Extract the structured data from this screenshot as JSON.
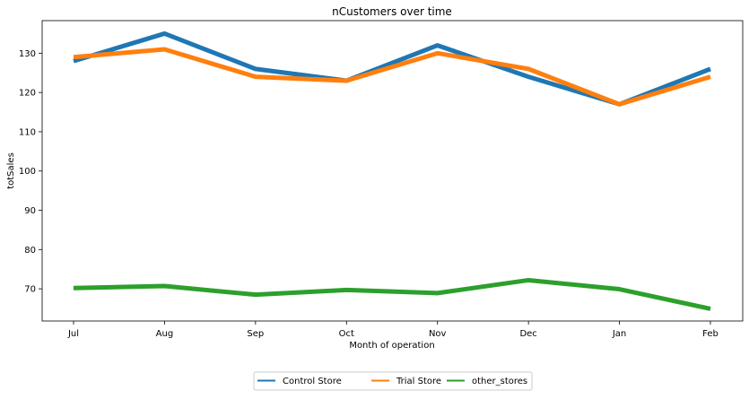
{
  "chart_data": {
    "type": "line",
    "title": "nCustomers over time",
    "xlabel": "Month of operation",
    "ylabel": "totSales",
    "categories": [
      "Jul",
      "Aug",
      "Sep",
      "Oct",
      "Nov",
      "Dec",
      "Jan",
      "Feb"
    ],
    "yticks": [
      70,
      80,
      90,
      100,
      110,
      120,
      130
    ],
    "ylim": [
      61.8,
      138.3
    ],
    "grid": false,
    "legend_placement": "bottom-center",
    "series": [
      {
        "name": "Control Store",
        "color": "#1f77b4",
        "values": [
          128,
          135,
          126,
          123,
          132,
          124,
          117,
          126
        ]
      },
      {
        "name": "Trial Store",
        "color": "#ff7f0e",
        "values": [
          129,
          131,
          124,
          123,
          130,
          126,
          117,
          124
        ]
      },
      {
        "name": "other_stores",
        "color": "#2ca02c",
        "values": [
          70.2,
          70.7,
          68.5,
          69.7,
          68.9,
          72.2,
          69.9,
          64.9
        ]
      }
    ]
  }
}
